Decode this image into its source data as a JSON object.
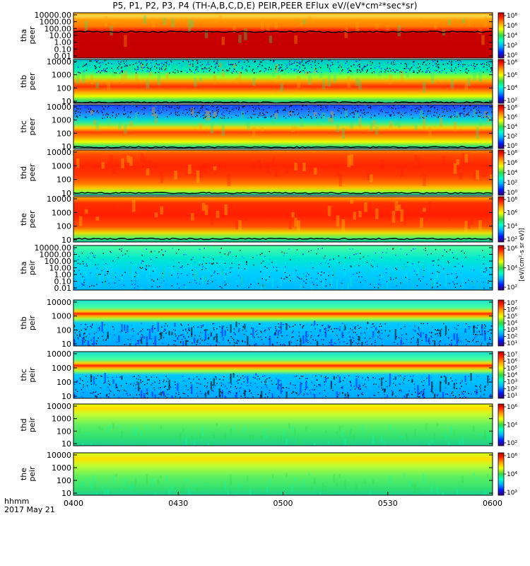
{
  "title": "P5, P1, P2, P3, P4 (TH-A,B,C,D,E) PEIR,PEER EFlux eV/(eV*cm²*sec*sr)",
  "colorbar_unit": "[eV/(cm²-s sr eV)]",
  "colors": {
    "scale": [
      "#3a0075",
      "#0000ff",
      "#00b4ff",
      "#00ffc0",
      "#2fd64a",
      "#e4ff00",
      "#ffa500",
      "#ff2800",
      "#cc0000"
    ]
  },
  "chart_data": {
    "type": "heatmap",
    "description_units": "energy spectrograms, y = energy (eV, log), x = UT time",
    "x": {
      "start": "0400",
      "end": "0600",
      "tick_labels": [
        "0400",
        "0430",
        "0500",
        "0530",
        "0600"
      ],
      "label_line1": "hhmm",
      "label_line2": "2017 May 21"
    },
    "panels": [
      {
        "id": "tha_peer",
        "probe": "tha",
        "species": "peer",
        "ylim": [
          0.01,
          10000
        ],
        "yticks": [
          "10000.00",
          "1000.00",
          "100.00",
          "10.00",
          "1.00",
          "0.10",
          "0.01"
        ],
        "cbar_ticks": [
          "10⁸",
          "10⁶",
          "10⁴",
          "10²",
          "10⁰"
        ]
      },
      {
        "id": "thb_peer",
        "probe": "thb",
        "species": "peer",
        "ylim": [
          10,
          10000
        ],
        "yticks": [
          "10000",
          "1000",
          "100",
          "10"
        ],
        "cbar_ticks": [
          "10⁸",
          "10⁶",
          "10⁴",
          "10²"
        ]
      },
      {
        "id": "thc_peer",
        "probe": "thc",
        "species": "peer",
        "ylim": [
          10,
          10000
        ],
        "yticks": [
          "10000",
          "1000",
          "100",
          "10"
        ],
        "cbar_ticks": [
          "10⁸",
          "10⁶",
          "10⁴",
          "10²",
          "10⁰"
        ]
      },
      {
        "id": "thd_peer",
        "probe": "thd",
        "species": "peer",
        "ylim": [
          10,
          10000
        ],
        "yticks": [
          "10000",
          "1000",
          "100",
          "10"
        ],
        "cbar_ticks": [
          "10⁸",
          "10⁶",
          "10⁴",
          "10²",
          "10⁰"
        ]
      },
      {
        "id": "the_peer",
        "probe": "the",
        "species": "peer",
        "ylim": [
          10,
          10000
        ],
        "yticks": [
          "10000",
          "1000",
          "100",
          "10"
        ],
        "cbar_ticks": [
          "10⁸",
          "10⁶",
          "10⁴",
          "10²"
        ]
      },
      {
        "id": "tha_peir",
        "probe": "tha",
        "species": "peir",
        "ylim": [
          0.01,
          10000
        ],
        "yticks": [
          "10000.00",
          "1000.00",
          "100.00",
          "10.00",
          "1.00",
          "0.10",
          "0.01"
        ],
        "cbar_ticks": [
          "10⁶",
          "10⁴",
          "10²"
        ]
      },
      {
        "id": "thb_peir",
        "probe": "thb",
        "species": "peir",
        "ylim": [
          10,
          10000
        ],
        "yticks": [
          "10000",
          "1000",
          "100",
          "10"
        ],
        "cbar_ticks": [
          "10⁷",
          "10⁶",
          "10⁵",
          "10⁴",
          "10³",
          "10²",
          "10¹"
        ]
      },
      {
        "id": "thc_peir",
        "probe": "thc",
        "species": "peir",
        "ylim": [
          10,
          10000
        ],
        "yticks": [
          "10000",
          "1000",
          "100",
          "10"
        ],
        "cbar_ticks": [
          "10⁷",
          "10⁶",
          "10⁵",
          "10⁴",
          "10³",
          "10²",
          "10¹"
        ]
      },
      {
        "id": "thd_peir",
        "probe": "thd",
        "species": "peir",
        "ylim": [
          10,
          10000
        ],
        "yticks": [
          "10000",
          "1000",
          "100",
          "10"
        ],
        "cbar_ticks": [
          "10⁶",
          "10⁴",
          "10²"
        ]
      },
      {
        "id": "the_peir",
        "probe": "the",
        "species": "peir",
        "ylim": [
          10,
          10000
        ],
        "yticks": [
          "10000",
          "1000",
          "100",
          "10"
        ],
        "cbar_ticks": [
          "10⁶",
          "10⁴",
          "10²"
        ]
      }
    ]
  }
}
